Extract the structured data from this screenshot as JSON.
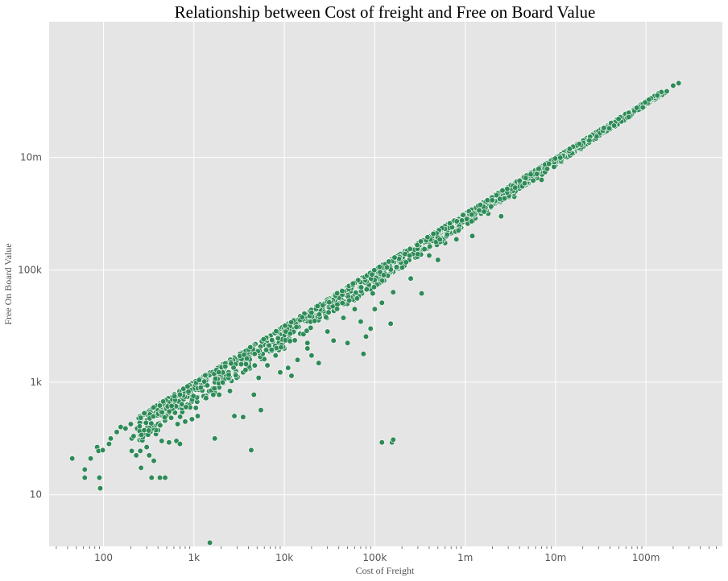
{
  "chart_data": {
    "type": "scatter",
    "title": "Relationship between Cost of freight and Free on Board Value",
    "xlabel": "Cost of Freight",
    "ylabel": "Free On Board Value",
    "x_scale": "log",
    "y_scale": "log",
    "xlim": [
      25,
      700000000
    ],
    "ylim": [
      1.2,
      2600000000
    ],
    "grid": true,
    "background_color": "#e5e5e5",
    "grid_color": "#ffffff",
    "marker_color": "#2e8b57",
    "marker_edge_color": "#ffffff",
    "x_ticks": [
      {
        "value": 100,
        "label": "100"
      },
      {
        "value": 1000,
        "label": "1k"
      },
      {
        "value": 10000,
        "label": "10k"
      },
      {
        "value": 100000,
        "label": "100k"
      },
      {
        "value": 1000000,
        "label": "1m"
      },
      {
        "value": 10000000,
        "label": "10m"
      },
      {
        "value": 100000000,
        "label": "100m"
      }
    ],
    "y_ticks": [
      {
        "value": 10,
        "label": "10"
      },
      {
        "value": 1000,
        "label": "1k"
      },
      {
        "value": 100000,
        "label": "100k"
      },
      {
        "value": 10000000,
        "label": "10m"
      }
    ],
    "series": [
      {
        "points": [
          [
            45,
            44
          ],
          [
            62,
            28
          ],
          [
            62,
            20
          ],
          [
            72,
            44
          ],
          [
            85,
            70
          ],
          [
            88,
            60
          ],
          [
            90,
            20
          ],
          [
            92,
            13
          ],
          [
            98,
            62
          ],
          [
            115,
            80
          ],
          [
            120,
            100
          ],
          [
            140,
            130
          ],
          [
            155,
            160
          ],
          [
            175,
            150
          ],
          [
            200,
            180
          ],
          [
            205,
            60
          ],
          [
            205,
            100
          ],
          [
            215,
            110
          ],
          [
            230,
            50
          ],
          [
            235,
            150
          ],
          [
            245,
            230
          ],
          [
            255,
            60
          ],
          [
            260,
            200
          ],
          [
            260,
            30
          ],
          [
            280,
            110
          ],
          [
            300,
            70
          ],
          [
            320,
            50
          ],
          [
            330,
            280
          ],
          [
            340,
            20
          ],
          [
            360,
            40
          ],
          [
            380,
            120
          ],
          [
            390,
            250
          ],
          [
            400,
            140
          ],
          [
            420,
            20
          ],
          [
            440,
            90
          ],
          [
            470,
            320
          ],
          [
            480,
            20
          ],
          [
            530,
            85
          ],
          [
            560,
            230
          ],
          [
            600,
            460
          ],
          [
            640,
            90
          ],
          [
            660,
            180
          ],
          [
            700,
            80
          ],
          [
            760,
            600
          ],
          [
            800,
            200
          ],
          [
            850,
            400
          ],
          [
            950,
            220
          ],
          [
            1000,
            800
          ],
          [
            1050,
            350
          ],
          [
            1100,
            250
          ],
          [
            1300,
            900
          ],
          [
            1500,
            1.4
          ],
          [
            1700,
            1000
          ],
          [
            1700,
            100
          ],
          [
            1900,
            600
          ],
          [
            2100,
            1200
          ],
          [
            2500,
            700
          ],
          [
            2800,
            250
          ],
          [
            3500,
            1500
          ],
          [
            3500,
            240
          ],
          [
            4300,
            62
          ],
          [
            4600,
            600
          ],
          [
            5200,
            1200
          ],
          [
            5500,
            320
          ],
          [
            6500,
            2000
          ],
          [
            8000,
            3000
          ],
          [
            9000,
            1500
          ],
          [
            10000,
            4000
          ],
          [
            11000,
            1800
          ],
          [
            12000,
            1300
          ],
          [
            14000,
            2500
          ],
          [
            18000,
            5000
          ],
          [
            18000,
            4000
          ],
          [
            20000,
            3000
          ],
          [
            24000,
            2200
          ],
          [
            30000,
            8000
          ],
          [
            35000,
            5500
          ],
          [
            45000,
            14000
          ],
          [
            50000,
            5000
          ],
          [
            60000,
            20000
          ],
          [
            70000,
            12000
          ],
          [
            75000,
            3200
          ],
          [
            80000,
            6500
          ],
          [
            90000,
            9000
          ],
          [
            90000,
            45000
          ],
          [
            95000,
            38000
          ],
          [
            100000,
            20000
          ],
          [
            100000,
            60000
          ],
          [
            120000,
            85
          ],
          [
            120000,
            26000
          ],
          [
            150000,
            11000
          ],
          [
            155000,
            85
          ],
          [
            160000,
            95
          ],
          [
            160000,
            40000
          ],
          [
            200000,
            140000
          ],
          [
            250000,
            70000
          ],
          [
            330000,
            38000
          ],
          [
            400000,
            180000
          ],
          [
            500000,
            150000
          ],
          [
            600000,
            300000
          ],
          [
            700000,
            450000
          ],
          [
            800000,
            350000
          ],
          [
            1000000,
            880000
          ],
          [
            1200000,
            400000
          ],
          [
            1500000,
            1000000
          ],
          [
            1800000,
            1000000
          ],
          [
            2000000,
            1800000
          ],
          [
            2500000,
            900000
          ],
          [
            3000000,
            2500000
          ],
          [
            3500000,
            2000000
          ],
          [
            4000000,
            3500000
          ],
          [
            5000000,
            3500000
          ],
          [
            6000000,
            5500000
          ],
          [
            7000000,
            4000000
          ],
          [
            8000000,
            7000000
          ],
          [
            10000000,
            9000000
          ],
          [
            12000000,
            11000000
          ],
          [
            14000000,
            11000000
          ],
          [
            17000000,
            15000000
          ],
          [
            20000000,
            19000000
          ],
          [
            25000000,
            23000000
          ],
          [
            30000000,
            26000000
          ],
          [
            38000000,
            34000000
          ],
          [
            45000000,
            42000000
          ],
          [
            55000000,
            50000000
          ],
          [
            65000000,
            60000000
          ],
          [
            75000000,
            65000000
          ],
          [
            85000000,
            70000000
          ],
          [
            95000000,
            80000000
          ],
          [
            100000000,
            90000000
          ],
          [
            160000000,
            140000000
          ],
          [
            170000000,
            150000000
          ],
          [
            200000000,
            190000000
          ],
          [
            230000000,
            210000000
          ]
        ]
      }
    ]
  }
}
